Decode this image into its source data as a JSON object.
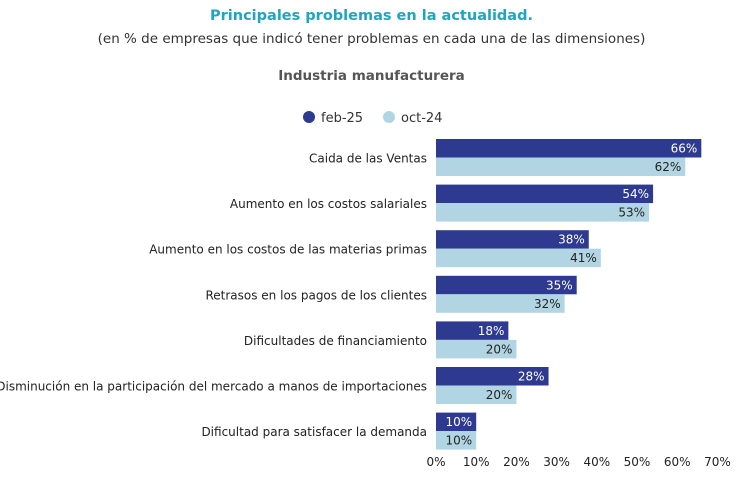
{
  "chart_data": {
    "type": "bar",
    "orientation": "horizontal",
    "title": "Principales problemas en la actualidad.",
    "subtitle": "(en % de empresas que indicó tener problemas en cada una de las dimensiones)",
    "panel_title": "Industria manufacturera",
    "categories": [
      "Caida de las Ventas",
      "Aumento en los costos salariales",
      "Aumento en los costos de las materias primas",
      "Retrasos en los pagos de los clientes",
      "Dificultades de financiamiento",
      "Disminución en la participación del mercado a manos de importaciones",
      "Dificultad para satisfacer la demanda"
    ],
    "series": [
      {
        "name": "feb-25",
        "color": "#2e3a8f",
        "values": [
          66,
          54,
          38,
          35,
          18,
          28,
          10
        ]
      },
      {
        "name": "oct-24",
        "color": "#b2d5e4",
        "values": [
          62,
          53,
          41,
          32,
          20,
          20,
          10
        ]
      }
    ],
    "xlim": [
      0,
      70
    ],
    "xticks": [
      "0%",
      "10%",
      "20%",
      "30%",
      "40%",
      "50%",
      "60%",
      "70%"
    ],
    "value_suffix": "%",
    "legend": "top",
    "grid": false
  }
}
